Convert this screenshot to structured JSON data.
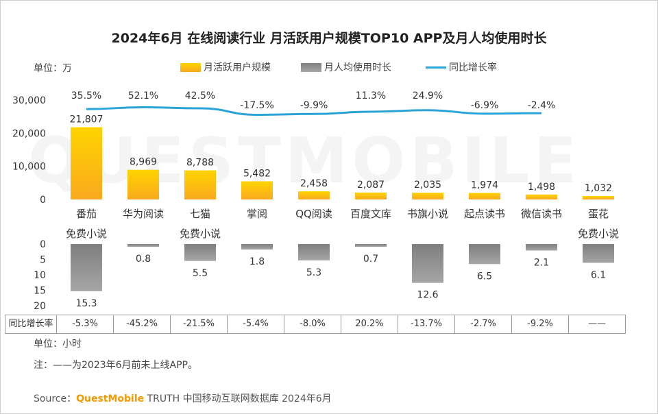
{
  "title": "2024年6月 在线阅读行业 月活跃用户规模TOP10 APP及月人均使用时长",
  "watermark": "QUESTMOBILE",
  "unit_top": "单位：万",
  "legend": {
    "mau": "月活跃用户规模",
    "time": "月人均使用时长",
    "growth": "同比增长率"
  },
  "table": {
    "header": "同比增长率",
    "values": [
      "-5.3%",
      "-45.2%",
      "-21.5%",
      "-5.4%",
      "-8.0%",
      "20.2%",
      "-13.7%",
      "-2.7%",
      "-9.2%",
      "——"
    ]
  },
  "unit_bottom": "单位：小时",
  "note": "注：——为2023年6月前未上线APP。",
  "source": {
    "prefix": "Source：",
    "brand": "QuestMobile",
    "rest": " TRUTH 中国移动互联网数据库 2024年6月"
  },
  "colors": {
    "bar_top": "#ffd400",
    "bar_bottom": "#f9a91e",
    "gray_top": "#7e7e7e",
    "gray_bottom": "#a6a6a6",
    "line": "#2aa3d8"
  },
  "chart_data": [
    {
      "type": "bar",
      "name": "月活跃用户规模",
      "categories": [
        [
          "番茄",
          "免费小说"
        ],
        [
          "华为阅读"
        ],
        [
          "七猫",
          "免费小说"
        ],
        [
          "掌阅"
        ],
        [
          "QQ阅读"
        ],
        [
          "百度文库"
        ],
        [
          "书旗小说"
        ],
        [
          "起点读书"
        ],
        [
          "微信读书"
        ],
        [
          "蛋花",
          "免费小说"
        ]
      ],
      "values": [
        21807,
        8969,
        8788,
        5482,
        2458,
        2087,
        2035,
        1974,
        1498,
        1032
      ],
      "value_labels": [
        "21,807",
        "8,969",
        "8,788",
        "5,482",
        "2,458",
        "2,087",
        "2,035",
        "1,974",
        "1,498",
        "1,032"
      ],
      "ylim": [
        0,
        30000
      ],
      "yticks": [
        0,
        10000,
        20000,
        30000
      ],
      "ytick_labels": [
        "0",
        "10,000",
        "20,000",
        "30,000"
      ]
    },
    {
      "type": "line",
      "name": "同比增长率",
      "values": [
        35.5,
        52.1,
        42.5,
        -17.5,
        -9.9,
        11.3,
        24.9,
        -6.9,
        -2.4
      ],
      "value_labels": [
        "35.5%",
        "52.1%",
        "42.5%",
        "-17.5%",
        "-9.9%",
        "11.3%",
        "24.9%",
        "-6.9%",
        "-2.4%"
      ]
    },
    {
      "type": "bar",
      "name": "月人均使用时长",
      "orientation": "downward",
      "values": [
        15.3,
        0.8,
        5.5,
        1.8,
        5.3,
        0.7,
        12.6,
        6.5,
        2.1,
        6.1
      ],
      "value_labels": [
        "15.3",
        "0.8",
        "5.5",
        "1.8",
        "5.3",
        "0.7",
        "12.6",
        "6.5",
        "2.1",
        "6.1"
      ],
      "ylim": [
        0,
        20
      ],
      "yticks": [
        0,
        5,
        10,
        15,
        20
      ],
      "ytick_labels": [
        "0",
        "5",
        "10",
        "15",
        "20"
      ]
    }
  ]
}
